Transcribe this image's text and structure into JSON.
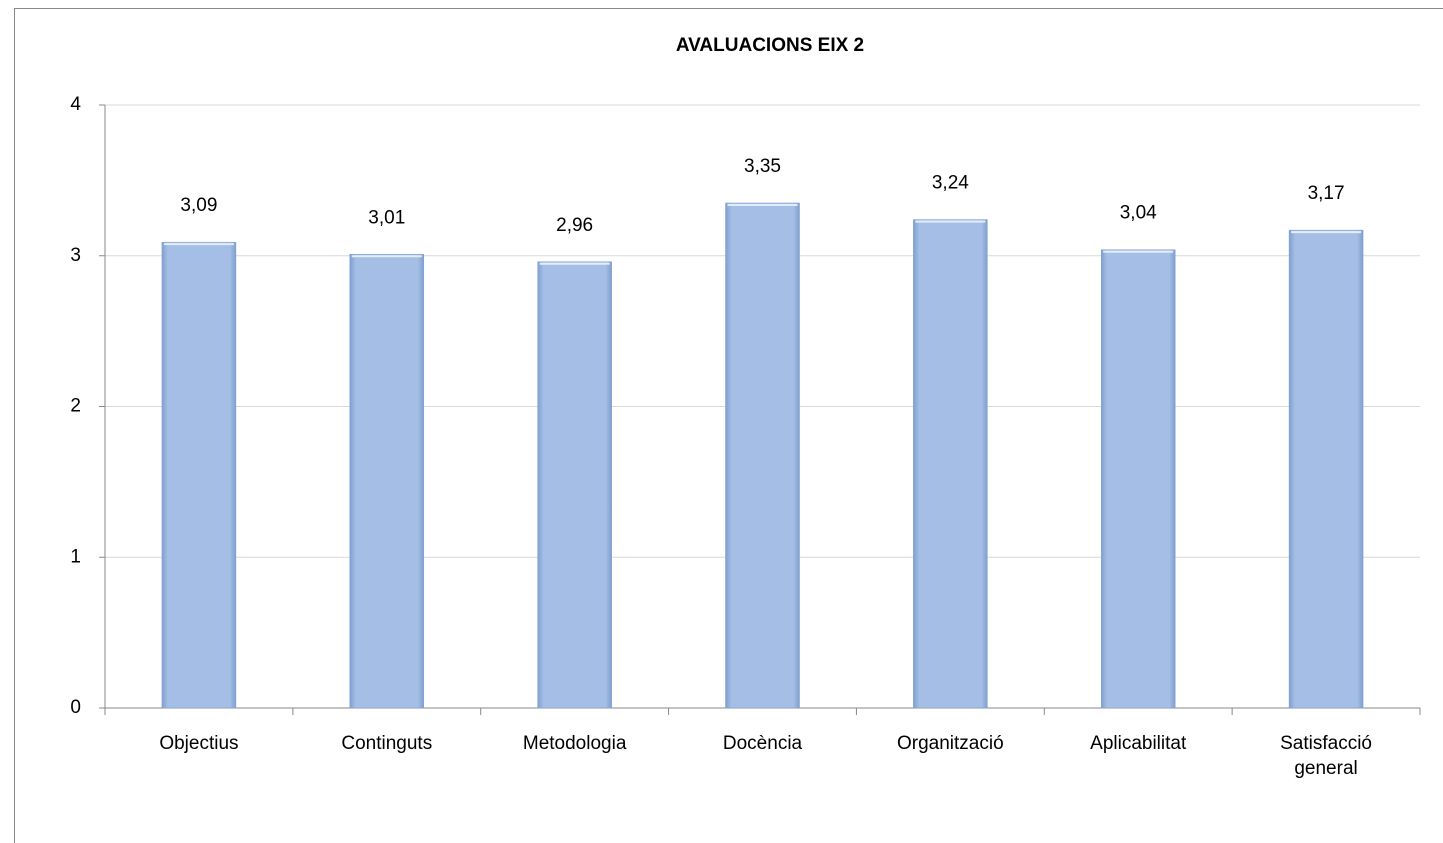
{
  "chart_data": {
    "type": "bar",
    "title": "AVALUACIONS EIX 2",
    "categories": [
      "Objectius",
      "Continguts",
      "Metodologia",
      "Docència",
      "Organització",
      "Aplicabilitat",
      "Satisfacció general"
    ],
    "values": [
      3.09,
      3.01,
      2.96,
      3.35,
      3.24,
      3.04,
      3.17
    ],
    "value_labels": [
      "3,09",
      "3,01",
      "2,96",
      "3,35",
      "3,24",
      "3,04",
      "3,17"
    ],
    "color": "#a4bee5",
    "ylim": [
      0,
      4
    ],
    "yticks": [
      0,
      1,
      2,
      3,
      4
    ],
    "grid": true
  }
}
